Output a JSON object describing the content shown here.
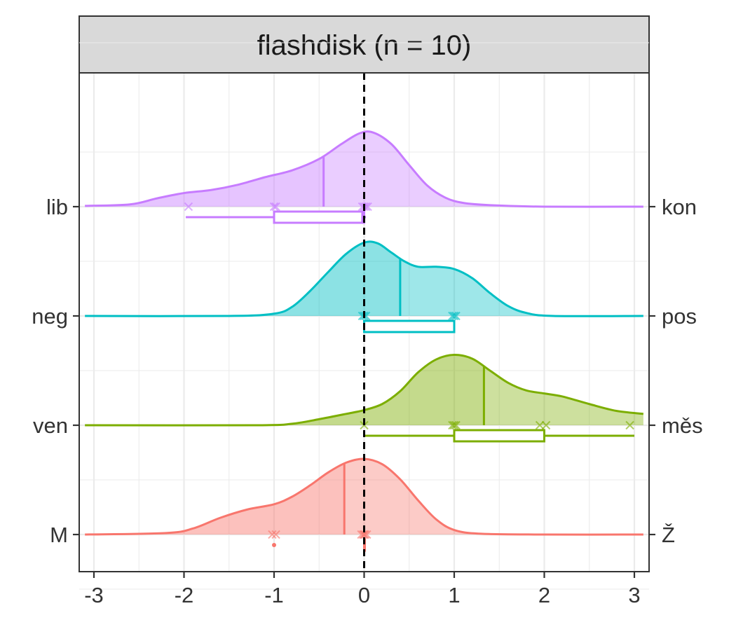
{
  "chart_data": {
    "type": "ridgeline",
    "facet_label": "flashdisk (n = 10)",
    "x_ticks": [
      -3,
      -2,
      -1,
      0,
      1,
      2,
      3
    ],
    "xlim": [
      -3.1,
      3.1
    ],
    "reference_line_x": 0,
    "grid": true,
    "rows": [
      {
        "left_label": "lib",
        "right_label": "kon",
        "color": "#C77CFF",
        "mean": -0.45,
        "points": [
          -1.95,
          -1.0,
          -0.98,
          -0.02,
          0.0,
          0.02,
          0.04
        ],
        "box": {
          "whisker_low": -1.98,
          "q1": -1.0,
          "median": -0.02,
          "q3": 0.0,
          "whisker_high": 0.02
        },
        "density": [
          [
            -3.1,
            0.01
          ],
          [
            -2.6,
            0.03
          ],
          [
            -2.3,
            0.11
          ],
          [
            -2.0,
            0.18
          ],
          [
            -1.7,
            0.22
          ],
          [
            -1.4,
            0.29
          ],
          [
            -1.1,
            0.39
          ],
          [
            -0.8,
            0.48
          ],
          [
            -0.5,
            0.63
          ],
          [
            -0.25,
            0.83
          ],
          [
            -0.05,
            0.97
          ],
          [
            0.1,
            0.98
          ],
          [
            0.3,
            0.83
          ],
          [
            0.5,
            0.55
          ],
          [
            0.7,
            0.28
          ],
          [
            0.9,
            0.12
          ],
          [
            1.1,
            0.05
          ],
          [
            1.4,
            0.02
          ],
          [
            2.0,
            0.0
          ],
          [
            3.1,
            0.0
          ]
        ]
      },
      {
        "left_label": "neg",
        "right_label": "pos",
        "color": "#00BFC4",
        "mean": 0.4,
        "points": [
          -0.02,
          0.0,
          0.02,
          0.98,
          1.0,
          1.02
        ],
        "box": {
          "whisker_low": 0.0,
          "q1": 0.0,
          "median": 0.0,
          "q3": 1.0,
          "whisker_high": 1.0
        },
        "density": [
          [
            -3.1,
            0.0
          ],
          [
            -1.5,
            0.0
          ],
          [
            -1.0,
            0.03
          ],
          [
            -0.8,
            0.12
          ],
          [
            -0.6,
            0.33
          ],
          [
            -0.4,
            0.58
          ],
          [
            -0.2,
            0.82
          ],
          [
            0.0,
            0.97
          ],
          [
            0.15,
            0.96
          ],
          [
            0.3,
            0.84
          ],
          [
            0.45,
            0.72
          ],
          [
            0.6,
            0.65
          ],
          [
            0.8,
            0.65
          ],
          [
            1.0,
            0.62
          ],
          [
            1.2,
            0.5
          ],
          [
            1.4,
            0.3
          ],
          [
            1.6,
            0.13
          ],
          [
            1.8,
            0.04
          ],
          [
            2.1,
            0.0
          ],
          [
            3.1,
            0.0
          ]
        ]
      },
      {
        "left_label": "ven",
        "right_label": "měs",
        "color": "#7CAE00",
        "mean": 1.33,
        "points": [
          0.0,
          0.98,
          1.0,
          1.02,
          1.95,
          2.02,
          2.95
        ],
        "box": {
          "whisker_low": 0.0,
          "q1": 1.0,
          "median": 1.0,
          "q3": 2.0,
          "whisker_high": 3.0
        },
        "density": [
          [
            -3.1,
            0.0
          ],
          [
            -1.2,
            0.0
          ],
          [
            -0.8,
            0.02
          ],
          [
            -0.5,
            0.08
          ],
          [
            -0.2,
            0.15
          ],
          [
            0.0,
            0.2
          ],
          [
            0.2,
            0.28
          ],
          [
            0.4,
            0.45
          ],
          [
            0.6,
            0.7
          ],
          [
            0.8,
            0.87
          ],
          [
            1.0,
            0.93
          ],
          [
            1.2,
            0.88
          ],
          [
            1.4,
            0.72
          ],
          [
            1.6,
            0.56
          ],
          [
            1.8,
            0.46
          ],
          [
            2.0,
            0.42
          ],
          [
            2.2,
            0.38
          ],
          [
            2.5,
            0.28
          ],
          [
            2.8,
            0.19
          ],
          [
            3.1,
            0.15
          ]
        ]
      },
      {
        "left_label": "M",
        "right_label": "Ž",
        "color": "#F8766D",
        "mean": -0.22,
        "points": [
          -1.02,
          -0.98,
          -0.03,
          -0.01,
          0.01,
          0.03,
          0.0
        ],
        "outliers": [
          -1.0
        ],
        "box": {
          "whisker_low": 0.0,
          "q1": 0.0,
          "median": 0.0,
          "q3": 0.0,
          "whisker_high": 0.0
        },
        "density": [
          [
            -3.1,
            0.0
          ],
          [
            -2.2,
            0.02
          ],
          [
            -1.9,
            0.08
          ],
          [
            -1.6,
            0.22
          ],
          [
            -1.3,
            0.33
          ],
          [
            -1.0,
            0.4
          ],
          [
            -0.8,
            0.5
          ],
          [
            -0.6,
            0.65
          ],
          [
            -0.4,
            0.82
          ],
          [
            -0.2,
            0.95
          ],
          [
            0.0,
            1.0
          ],
          [
            0.2,
            0.93
          ],
          [
            0.4,
            0.73
          ],
          [
            0.6,
            0.45
          ],
          [
            0.8,
            0.2
          ],
          [
            1.0,
            0.06
          ],
          [
            1.3,
            0.01
          ],
          [
            2.0,
            0.0
          ],
          [
            3.1,
            0.0
          ]
        ]
      }
    ]
  }
}
